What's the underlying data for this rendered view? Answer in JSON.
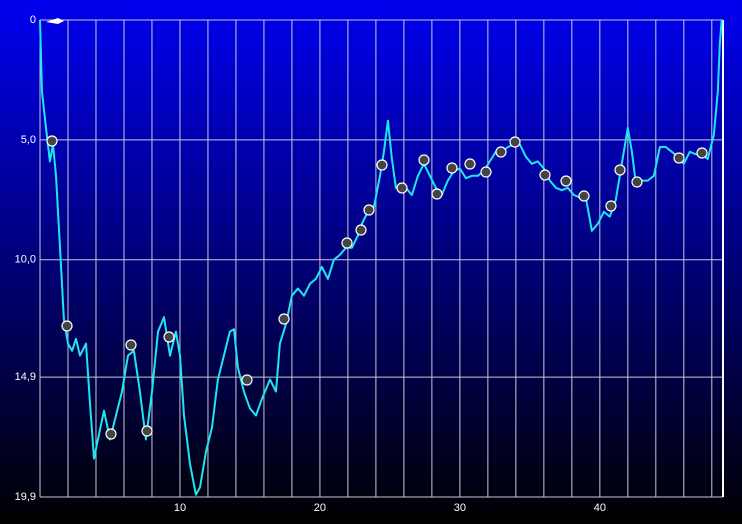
{
  "chart_data": {
    "type": "line",
    "color": "#1ee6f0",
    "grid": true,
    "y_inverted": true,
    "xlim": [
      0,
      48.8
    ],
    "xticks": [
      10,
      20,
      30,
      40
    ],
    "xgrid": [
      0,
      2,
      4,
      6,
      8,
      10,
      12,
      14,
      16,
      18,
      20,
      22,
      24,
      26,
      28,
      30,
      32,
      34,
      36,
      38,
      40,
      42,
      44,
      46,
      48
    ],
    "ylim": [
      0,
      19.9
    ],
    "yticks": [
      0,
      {
        "value": 5.0,
        "label": "5,0"
      },
      {
        "value": 10.0,
        "label": "10,0"
      },
      {
        "value": 14.9,
        "label": "14,9"
      },
      {
        "value": 19.9,
        "label": "19,9"
      }
    ],
    "x": [
      0,
      0.14,
      0.43,
      0.71,
      0.93,
      1.14,
      1.43,
      1.71,
      2.0,
      2.29,
      2.57,
      2.86,
      3.29,
      3.57,
      3.86,
      4.14,
      4.57,
      5.0,
      5.43,
      5.86,
      6.29,
      6.71,
      7.14,
      7.57,
      8.0,
      8.43,
      8.86,
      9.29,
      9.71,
      10.0,
      10.29,
      10.71,
      11.14,
      11.43,
      11.86,
      12.29,
      12.71,
      13.14,
      13.57,
      13.86,
      14.14,
      14.57,
      15.0,
      15.43,
      15.86,
      16.43,
      16.86,
      17.14,
      17.57,
      18.0,
      18.43,
      18.86,
      19.29,
      19.71,
      20.14,
      20.57,
      21.0,
      21.43,
      21.86,
      22.29,
      22.71,
      23.0,
      23.43,
      23.86,
      24.29,
      24.57,
      24.86,
      25.14,
      25.43,
      25.71,
      26.14,
      26.57,
      27.0,
      27.43,
      27.86,
      28.29,
      28.71,
      29.14,
      29.57,
      30.0,
      30.43,
      30.86,
      31.29,
      31.71,
      32.14,
      32.57,
      33.0,
      33.43,
      33.86,
      34.29,
      34.71,
      35.14,
      35.57,
      36.0,
      36.43,
      36.86,
      37.29,
      37.71,
      38.14,
      38.57,
      39.0,
      39.43,
      39.86,
      40.29,
      40.71,
      41.14,
      41.57,
      42.0,
      42.29,
      42.57,
      43.0,
      43.43,
      43.86,
      44.29,
      44.71,
      45.14,
      45.57,
      46.0,
      46.43,
      46.86,
      47.29,
      47.71,
      48.14,
      48.43,
      48.57,
      48.71
    ],
    "values": [
      0,
      3,
      4.5,
      5.9,
      5.2,
      6.5,
      9.5,
      12.5,
      13.5,
      13.8,
      13.3,
      14,
      13.5,
      16,
      18.3,
      17.5,
      16.3,
      17.5,
      16.5,
      15.5,
      14,
      13.8,
      15.5,
      17.5,
      15.5,
      13,
      12.4,
      14,
      13,
      14,
      16.5,
      18.5,
      19.8,
      19.5,
      18,
      17,
      15,
      14,
      13,
      12.9,
      14.5,
      15.5,
      16.2,
      16.5,
      15.8,
      15,
      15.5,
      13.5,
      12.7,
      11.5,
      11.2,
      11.5,
      11,
      10.8,
      10.3,
      10.8,
      10,
      9.8,
      9.5,
      9.5,
      9,
      8.5,
      8,
      7.8,
      6.5,
      5.5,
      4.2,
      5.8,
      7,
      7,
      7,
      7.3,
      6.5,
      6,
      6.5,
      7,
      7.3,
      6.7,
      6.3,
      6.2,
      6.6,
      6.5,
      6.5,
      6.3,
      5.9,
      5.5,
      5.5,
      5.3,
      5.2,
      5.2,
      5.7,
      6,
      5.9,
      6.2,
      6.7,
      7,
      7.1,
      7,
      7.3,
      7.4,
      7.4,
      8.8,
      8.5,
      8,
      8.2,
      7.5,
      6,
      4.5,
      5.5,
      6.8,
      6.7,
      6.7,
      6.5,
      5.3,
      5.3,
      5.5,
      5.7,
      6,
      5.5,
      5.6,
      5.6,
      5.8,
      4.8,
      3,
      1,
      0
    ]
  }
}
